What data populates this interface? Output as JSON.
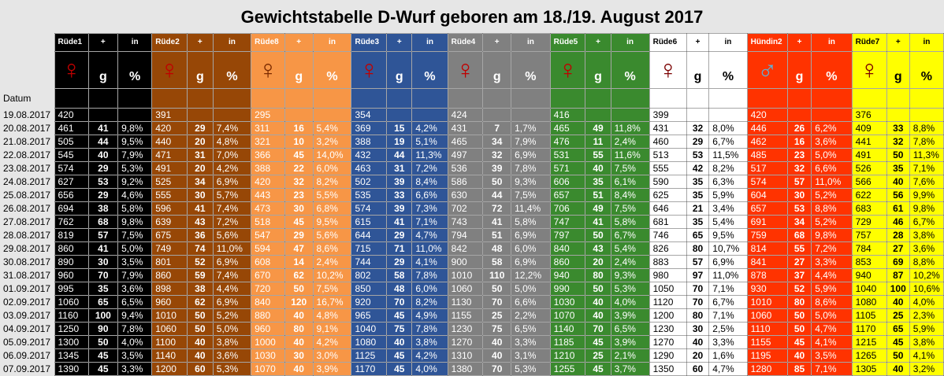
{
  "title": "Gewichtstabelle D-Wurf geboren am 18./19. August 2017",
  "date_header": "Datum",
  "sub_plus": "+",
  "sub_in": "in",
  "unit_g": "g",
  "unit_pct": "%",
  "icons": {
    "female": "female-sign-icon",
    "male": "male-sign-icon"
  },
  "dates": [
    "19.08.2017",
    "20.08.2017",
    "21.08.2017",
    "22.08.2017",
    "23.08.2017",
    "24.08.2017",
    "25.08.2017",
    "26.08.2017",
    "27.08.2017",
    "28.08.2017",
    "29.08.2017",
    "30.08.2017",
    "31.08.2017",
    "01.09.2017",
    "02.09.2017",
    "03.09.2017",
    "04.09.2017",
    "05.09.2017",
    "06.09.2017",
    "07.09.2017"
  ],
  "puppies": [
    {
      "name": "Rüde1",
      "symbol": "♀",
      "bg": "#000000",
      "fg": "#ffffff",
      "sym_color": "#c00000",
      "w": [
        "420",
        "461",
        "505",
        "545",
        "574",
        "627",
        "656",
        "694",
        "762",
        "819",
        "860",
        "890",
        "960",
        "995",
        "1060",
        "1160",
        "1250",
        "1300",
        "1345",
        "1390"
      ],
      "g": [
        "",
        "41",
        "44",
        "40",
        "29",
        "53",
        "29",
        "38",
        "68",
        "57",
        "41",
        "30",
        "70",
        "35",
        "65",
        "100",
        "90",
        "50",
        "45",
        "45"
      ],
      "p": [
        "",
        "9,8%",
        "9,5%",
        "7,9%",
        "5,3%",
        "9,2%",
        "4,6%",
        "5,8%",
        "9,8%",
        "7,5%",
        "5,0%",
        "3,5%",
        "7,9%",
        "3,6%",
        "6,5%",
        "9,4%",
        "7,8%",
        "4,0%",
        "3,5%",
        "3,3%"
      ]
    },
    {
      "name": "Rüde2",
      "symbol": "♀",
      "bg": "#974706",
      "fg": "#ffffff",
      "sym_color": "#c00000",
      "w": [
        "391",
        "420",
        "440",
        "471",
        "491",
        "525",
        "555",
        "596",
        "639",
        "675",
        "749",
        "801",
        "860",
        "898",
        "960",
        "1010",
        "1060",
        "1100",
        "1140",
        "1200"
      ],
      "g": [
        "",
        "29",
        "20",
        "31",
        "20",
        "34",
        "30",
        "41",
        "43",
        "36",
        "74",
        "52",
        "59",
        "38",
        "62",
        "50",
        "50",
        "40",
        "40",
        "60"
      ],
      "p": [
        "",
        "7,4%",
        "4,8%",
        "7,0%",
        "4,2%",
        "6,9%",
        "5,7%",
        "7,4%",
        "7,2%",
        "5,6%",
        "11,0%",
        "6,9%",
        "7,4%",
        "4,4%",
        "6,9%",
        "5,2%",
        "5,0%",
        "3,8%",
        "3,6%",
        "5,3%"
      ]
    },
    {
      "name": "Rüde8",
      "symbol": "♀",
      "bg": "#f79646",
      "fg": "#ffffff",
      "sym_color": "#7b2a00",
      "w": [
        "295",
        "311",
        "321",
        "366",
        "388",
        "420",
        "443",
        "473",
        "518",
        "547",
        "594",
        "608",
        "670",
        "720",
        "840",
        "880",
        "960",
        "1000",
        "1030",
        "1070"
      ],
      "g": [
        "",
        "16",
        "10",
        "45",
        "22",
        "32",
        "23",
        "30",
        "45",
        "29",
        "47",
        "14",
        "62",
        "50",
        "120",
        "40",
        "80",
        "40",
        "30",
        "40"
      ],
      "p": [
        "",
        "5,4%",
        "3,2%",
        "14,0%",
        "6,0%",
        "8,2%",
        "5,5%",
        "6,8%",
        "9,5%",
        "5,6%",
        "8,6%",
        "2,4%",
        "10,2%",
        "7,5%",
        "16,7%",
        "4,8%",
        "9,1%",
        "4,2%",
        "3,0%",
        "3,9%"
      ]
    },
    {
      "name": "Rüde3",
      "symbol": "♀",
      "bg": "#2f5597",
      "fg": "#ffffff",
      "sym_color": "#c00000",
      "w": [
        "354",
        "369",
        "388",
        "432",
        "463",
        "502",
        "535",
        "574",
        "615",
        "644",
        "715",
        "744",
        "802",
        "850",
        "920",
        "965",
        "1040",
        "1080",
        "1125",
        "1170"
      ],
      "g": [
        "",
        "15",
        "19",
        "44",
        "31",
        "39",
        "33",
        "39",
        "41",
        "29",
        "71",
        "29",
        "58",
        "48",
        "70",
        "45",
        "75",
        "40",
        "45",
        "45"
      ],
      "p": [
        "",
        "4,2%",
        "5,1%",
        "11,3%",
        "7,2%",
        "8,4%",
        "6,6%",
        "7,3%",
        "7,1%",
        "4,7%",
        "11,0%",
        "4,1%",
        "7,8%",
        "6,0%",
        "8,2%",
        "4,9%",
        "7,8%",
        "3,8%",
        "4,2%",
        "4,0%"
      ]
    },
    {
      "name": "Rüde4",
      "symbol": "♀",
      "bg": "#808080",
      "fg": "#ffffff",
      "sym_color": "#c00000",
      "w": [
        "424",
        "431",
        "465",
        "497",
        "536",
        "586",
        "630",
        "702",
        "743",
        "794",
        "842",
        "900",
        "1010",
        "1060",
        "1130",
        "1155",
        "1230",
        "1270",
        "1310",
        "1380"
      ],
      "g": [
        "",
        "7",
        "34",
        "32",
        "39",
        "50",
        "44",
        "72",
        "41",
        "51",
        "48",
        "58",
        "110",
        "50",
        "70",
        "25",
        "75",
        "40",
        "40",
        "70"
      ],
      "p": [
        "",
        "1,7%",
        "7,9%",
        "6,9%",
        "7,8%",
        "9,3%",
        "7,5%",
        "11,4%",
        "5,8%",
        "6,9%",
        "6,0%",
        "6,9%",
        "12,2%",
        "5,0%",
        "6,6%",
        "2,2%",
        "6,5%",
        "3,3%",
        "3,1%",
        "5,3%"
      ]
    },
    {
      "name": "Rüde5",
      "symbol": "♀",
      "bg": "#3a8a2e",
      "fg": "#ffffff",
      "sym_color": "#c00000",
      "w": [
        "416",
        "465",
        "476",
        "531",
        "571",
        "606",
        "657",
        "706",
        "747",
        "797",
        "840",
        "860",
        "940",
        "990",
        "1030",
        "1070",
        "1140",
        "1185",
        "1210",
        "1255"
      ],
      "g": [
        "",
        "49",
        "11",
        "55",
        "40",
        "35",
        "51",
        "49",
        "41",
        "50",
        "43",
        "20",
        "80",
        "50",
        "40",
        "40",
        "70",
        "45",
        "25",
        "45"
      ],
      "p": [
        "",
        "11,8%",
        "2,4%",
        "11,6%",
        "7,5%",
        "6,1%",
        "8,4%",
        "7,5%",
        "5,8%",
        "6,7%",
        "5,4%",
        "2,4%",
        "9,3%",
        "5,3%",
        "4,0%",
        "3,9%",
        "6,5%",
        "3,9%",
        "2,1%",
        "3,7%"
      ]
    },
    {
      "name": "Rüde6",
      "symbol": "♀",
      "bg": "#ffffff",
      "fg": "#000000",
      "sym_color": "#7b0000",
      "w": [
        "399",
        "431",
        "460",
        "513",
        "555",
        "590",
        "625",
        "646",
        "681",
        "746",
        "826",
        "883",
        "980",
        "1050",
        "1120",
        "1200",
        "1230",
        "1270",
        "1290",
        "1350"
      ],
      "g": [
        "",
        "32",
        "29",
        "53",
        "42",
        "35",
        "35",
        "21",
        "35",
        "65",
        "80",
        "57",
        "97",
        "70",
        "70",
        "80",
        "30",
        "40",
        "20",
        "60"
      ],
      "p": [
        "",
        "8,0%",
        "6,7%",
        "11,5%",
        "8,2%",
        "6,3%",
        "5,9%",
        "3,4%",
        "5,4%",
        "9,5%",
        "10,7%",
        "6,9%",
        "11,0%",
        "7,1%",
        "6,7%",
        "7,1%",
        "2,5%",
        "3,3%",
        "1,6%",
        "4,7%"
      ]
    },
    {
      "name": "Hündin2",
      "symbol": "♂",
      "bg": "#ff3300",
      "fg": "#ffffff",
      "sym_color": "#5fb0d8",
      "w": [
        "420",
        "446",
        "462",
        "485",
        "517",
        "574",
        "604",
        "657",
        "691",
        "759",
        "814",
        "841",
        "878",
        "930",
        "1010",
        "1060",
        "1110",
        "1155",
        "1195",
        "1280"
      ],
      "g": [
        "",
        "26",
        "16",
        "23",
        "32",
        "57",
        "30",
        "53",
        "34",
        "68",
        "55",
        "27",
        "37",
        "52",
        "80",
        "50",
        "50",
        "45",
        "40",
        "85"
      ],
      "p": [
        "",
        "6,2%",
        "3,6%",
        "5,0%",
        "6,6%",
        "11,0%",
        "5,2%",
        "8,8%",
        "5,2%",
        "9,8%",
        "7,2%",
        "3,3%",
        "4,4%",
        "5,9%",
        "8,6%",
        "5,0%",
        "4,7%",
        "4,1%",
        "3,5%",
        "7,1%"
      ]
    },
    {
      "name": "Rüde7",
      "symbol": "♀",
      "bg": "#ffff00",
      "fg": "#000000",
      "sym_color": "#7b0000",
      "w": [
        "376",
        "409",
        "441",
        "491",
        "526",
        "566",
        "622",
        "683",
        "729",
        "757",
        "784",
        "853",
        "940",
        "1040",
        "1080",
        "1105",
        "1170",
        "1215",
        "1265",
        "1305"
      ],
      "g": [
        "",
        "33",
        "32",
        "50",
        "35",
        "40",
        "56",
        "61",
        "46",
        "28",
        "27",
        "69",
        "87",
        "100",
        "40",
        "25",
        "65",
        "45",
        "50",
        "40"
      ],
      "p": [
        "",
        "8,8%",
        "7,8%",
        "11,3%",
        "7,1%",
        "7,6%",
        "9,9%",
        "9,8%",
        "6,7%",
        "3,8%",
        "3,6%",
        "8,8%",
        "10,2%",
        "10,6%",
        "4,0%",
        "2,3%",
        "5,9%",
        "3,8%",
        "4,1%",
        "3,2%"
      ]
    }
  ]
}
